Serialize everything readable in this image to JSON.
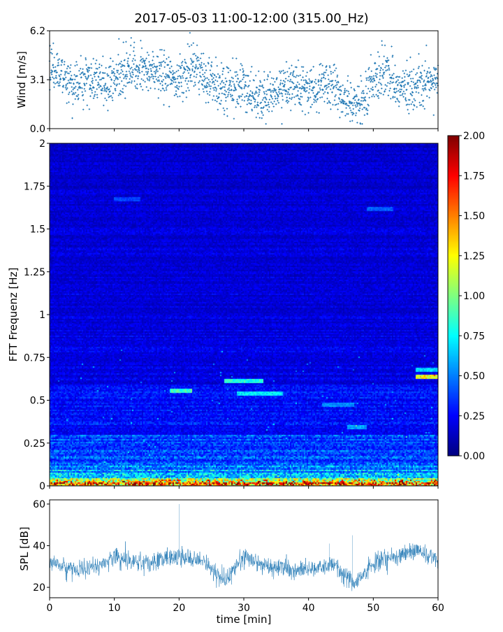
{
  "figure": {
    "title": "2017-05-03 11:00-12:00 (315.00_Hz)"
  },
  "colors": {
    "wind_marker": "#1f77b4",
    "spl_line": "#1f77b4",
    "colormap": "jet"
  },
  "chart_data": [
    {
      "type": "scatter",
      "name": "wind-panel",
      "ylabel": "Wind [m/s]",
      "xlim": [
        0,
        60
      ],
      "ylim": [
        0.0,
        6.2
      ],
      "yticks": [
        "0.0",
        "3.1",
        "6.2"
      ],
      "xtick_labels_visible": false,
      "trend": {
        "x": [
          0,
          2,
          4,
          6,
          8,
          10,
          12,
          14,
          16,
          18,
          20,
          22,
          24,
          26,
          28,
          30,
          32,
          34,
          36,
          38,
          40,
          42,
          44,
          46,
          48,
          50,
          52,
          54,
          56,
          58,
          60
        ],
        "y": [
          3.7,
          3.2,
          2.8,
          3.0,
          2.8,
          3.1,
          3.7,
          3.9,
          3.6,
          3.6,
          3.0,
          3.9,
          3.3,
          2.6,
          2.5,
          2.6,
          1.9,
          2.2,
          2.6,
          2.6,
          2.2,
          3.0,
          2.5,
          1.8,
          1.6,
          3.1,
          3.6,
          2.4,
          2.6,
          3.1,
          2.9
        ]
      },
      "point_count": 1800
    },
    {
      "type": "heatmap",
      "name": "spectrogram-panel",
      "ylabel": "FFT Frequenz [Hz]",
      "xlim": [
        0,
        60
      ],
      "ylim": [
        0,
        2
      ],
      "yticks": [
        "0",
        "0.25",
        "0.5",
        "0.75",
        "1",
        "1.25",
        "1.5",
        "1.75",
        "2"
      ],
      "xtick_labels_visible": false,
      "colorbar": {
        "range": [
          0.0,
          2.0
        ],
        "ticks": [
          "0.00",
          "0.25",
          "0.50",
          "0.75",
          "1.00",
          "1.25",
          "1.50",
          "1.75",
          "2.00"
        ]
      },
      "hotspots": [
        {
          "t0": 18.5,
          "t1": 22,
          "f": 0.56,
          "v": 0.9
        },
        {
          "t0": 27,
          "t1": 33,
          "f": 0.62,
          "v": 0.85
        },
        {
          "t0": 29,
          "t1": 36,
          "f": 0.54,
          "v": 0.75
        },
        {
          "t0": 56.5,
          "t1": 60,
          "f": 0.68,
          "v": 0.7
        },
        {
          "t0": 56.5,
          "t1": 60,
          "f": 0.64,
          "v": 1.3
        },
        {
          "t0": 49,
          "t1": 53,
          "f": 1.62,
          "v": 0.45
        },
        {
          "t0": 10,
          "t1": 14,
          "f": 1.68,
          "v": 0.4
        },
        {
          "t0": 42,
          "t1": 47,
          "f": 0.48,
          "v": 0.55
        },
        {
          "t0": 46,
          "t1": 49,
          "f": 0.35,
          "v": 0.6
        }
      ]
    },
    {
      "type": "line",
      "name": "spl-panel",
      "ylabel": "SPL [dB]",
      "xlabel": "time [min]",
      "xlim": [
        0,
        60
      ],
      "ylim": [
        15,
        62
      ],
      "yticks": [
        "20",
        "40",
        "60"
      ],
      "xticks": [
        "0",
        "10",
        "20",
        "30",
        "40",
        "50",
        "60"
      ],
      "trend": {
        "x": [
          0,
          2,
          4,
          6,
          8,
          10,
          12,
          14,
          16,
          18,
          20,
          22,
          24,
          26,
          27,
          28,
          30,
          32,
          34,
          36,
          38,
          40,
          42,
          44,
          46,
          47,
          48,
          50,
          52,
          54,
          56,
          58,
          60
        ],
        "y": [
          32,
          30,
          28,
          29,
          31,
          34,
          33,
          32,
          31,
          35,
          35,
          33,
          32,
          26,
          23,
          27,
          35,
          32,
          29,
          30,
          28,
          29,
          30,
          31,
          25,
          22,
          24,
          31,
          34,
          35,
          38,
          36,
          33
        ]
      },
      "spikes": [
        {
          "x": 20.0,
          "y": 60
        },
        {
          "x": 46.8,
          "y": 45
        },
        {
          "x": 43.2,
          "y": 41
        }
      ]
    }
  ]
}
